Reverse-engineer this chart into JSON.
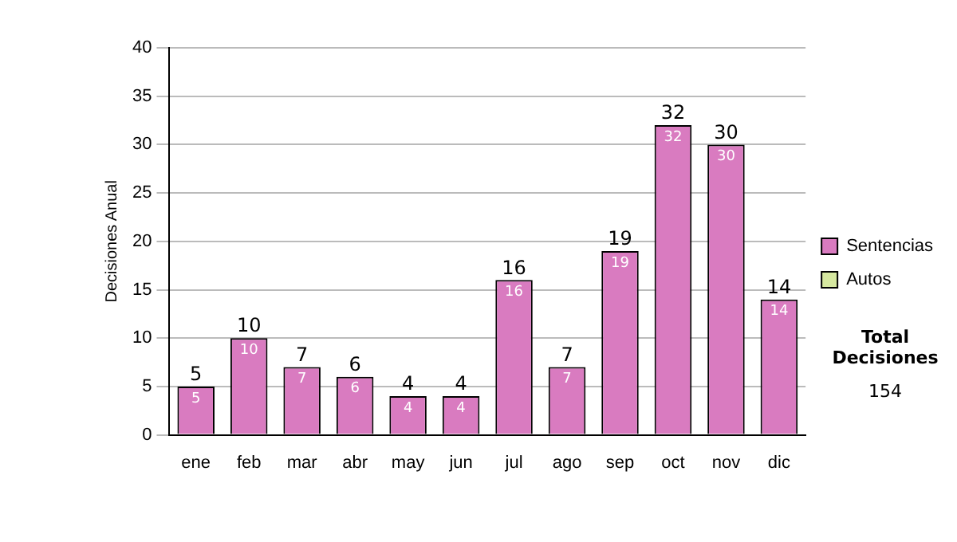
{
  "chart_data": {
    "type": "bar",
    "stacked": true,
    "ylabel": "Decisiones Anual",
    "categories": [
      "ene",
      "feb",
      "mar",
      "abr",
      "may",
      "jun",
      "jul",
      "ago",
      "sep",
      "oct",
      "nov",
      "dic"
    ],
    "series": [
      {
        "name": "Sentencias",
        "color": "#d97bc0",
        "values": [
          5,
          10,
          7,
          6,
          4,
          4,
          16,
          7,
          19,
          32,
          30,
          14
        ],
        "value_labels": [
          "5",
          "10",
          "7",
          "6",
          "4",
          "4",
          "16",
          "7",
          "19",
          "32",
          "30",
          "14"
        ]
      },
      {
        "name": "Autos",
        "color": "#d6e8a0",
        "values": [
          0,
          0,
          0,
          0,
          0,
          0,
          0,
          0,
          0,
          0,
          0,
          0
        ]
      }
    ],
    "totals": [
      "5",
      "10",
      "7",
      "6",
      "4",
      "4",
      "16",
      "7",
      "19",
      "32",
      "30",
      "14"
    ],
    "ylim": [
      0,
      40
    ],
    "yticks": [
      0,
      5,
      10,
      15,
      20,
      25,
      30,
      35,
      40
    ],
    "grid": "y",
    "legend": "right",
    "annotations": [
      "Total Decisiones",
      "154"
    ]
  }
}
